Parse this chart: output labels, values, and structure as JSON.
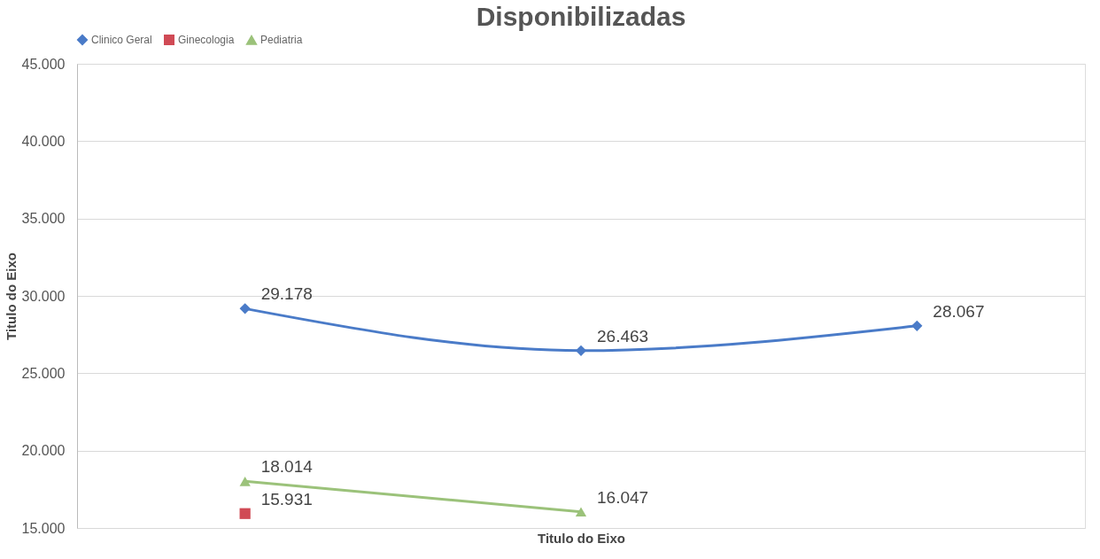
{
  "chart_data": {
    "type": "line",
    "title": "Disponibilizadas",
    "xlabel": "Titulo do Eixo",
    "ylabel": "Titulo do Eixo",
    "categories": [
      null,
      null,
      null
    ],
    "series": [
      {
        "name": "Clinico Geral",
        "color": "#4a7bc8",
        "marker": "diamond",
        "values": [
          29178,
          26463,
          28067
        ],
        "value_labels": [
          "29.178",
          "26.463",
          "28.067"
        ]
      },
      {
        "name": "Ginecologia",
        "color": "#d04a55",
        "marker": "square",
        "values": [
          15931,
          null,
          null
        ],
        "value_labels": [
          "15.931",
          null,
          null
        ]
      },
      {
        "name": "Pediatria",
        "color": "#9bc27a",
        "marker": "triangle",
        "values": [
          18014,
          16047,
          null
        ],
        "value_labels": [
          "18.014",
          "16.047",
          null
        ]
      }
    ],
    "ylim": [
      15000,
      45000
    ],
    "yticks": [
      {
        "value": 15000,
        "label": "15.000"
      },
      {
        "value": 20000,
        "label": "20.000"
      },
      {
        "value": 25000,
        "label": "25.000"
      },
      {
        "value": 30000,
        "label": "30.000"
      },
      {
        "value": 35000,
        "label": "35.000"
      },
      {
        "value": 40000,
        "label": "40.000"
      },
      {
        "value": 45000,
        "label": "45.000"
      }
    ],
    "grid": "y",
    "legend": "top",
    "tick_labels": "y",
    "line_style": "solid"
  }
}
